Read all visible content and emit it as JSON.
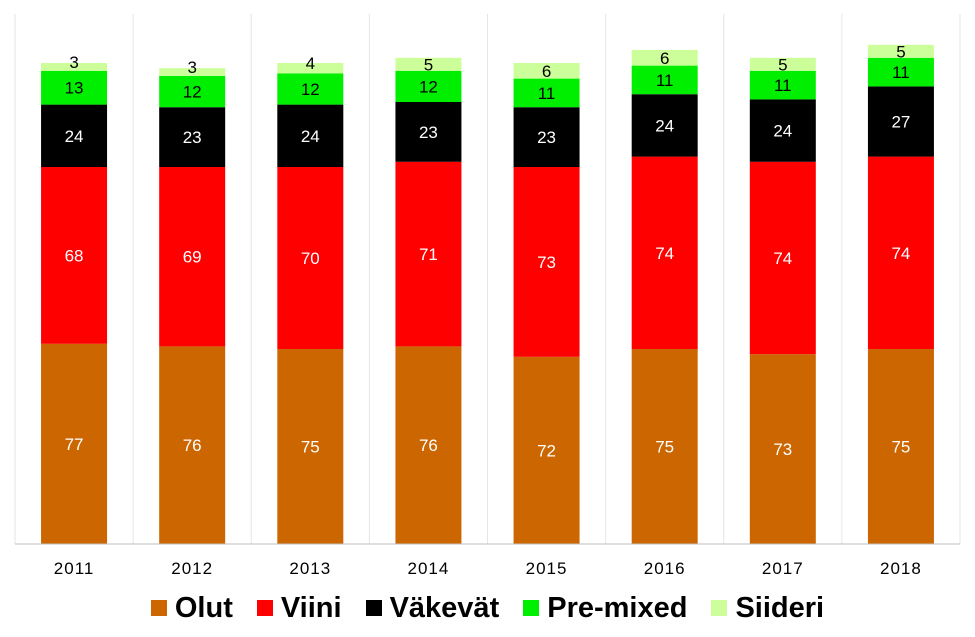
{
  "chart_data": {
    "type": "bar",
    "stacked": true,
    "title": "",
    "xlabel": "",
    "ylabel": "",
    "ylim": [
      0,
      210
    ],
    "grid": false,
    "legend_position": "bottom",
    "categories": [
      "2011",
      "2012",
      "2013",
      "2014",
      "2015",
      "2016",
      "2017",
      "2018"
    ],
    "series": [
      {
        "name": "Olut",
        "color": "#CC6600",
        "label_color": "#ffffff",
        "values": [
          77,
          76,
          75,
          76,
          72,
          75,
          73,
          75
        ]
      },
      {
        "name": "Viini",
        "color": "#FF0000",
        "label_color": "#ffffff",
        "values": [
          68,
          69,
          70,
          71,
          73,
          74,
          74,
          74
        ]
      },
      {
        "name": "Väkevät",
        "color": "#000000",
        "label_color": "#ffffff",
        "values": [
          24,
          23,
          24,
          23,
          23,
          24,
          24,
          27
        ]
      },
      {
        "name": "Pre-mixed",
        "color": "#00EE00",
        "label_color": "#000000",
        "values": [
          13,
          12,
          12,
          12,
          11,
          11,
          11,
          11
        ]
      },
      {
        "name": "Siideri",
        "color": "#CCFF99",
        "label_color": "#000000",
        "values": [
          3,
          3,
          4,
          5,
          6,
          6,
          5,
          5
        ]
      }
    ]
  }
}
